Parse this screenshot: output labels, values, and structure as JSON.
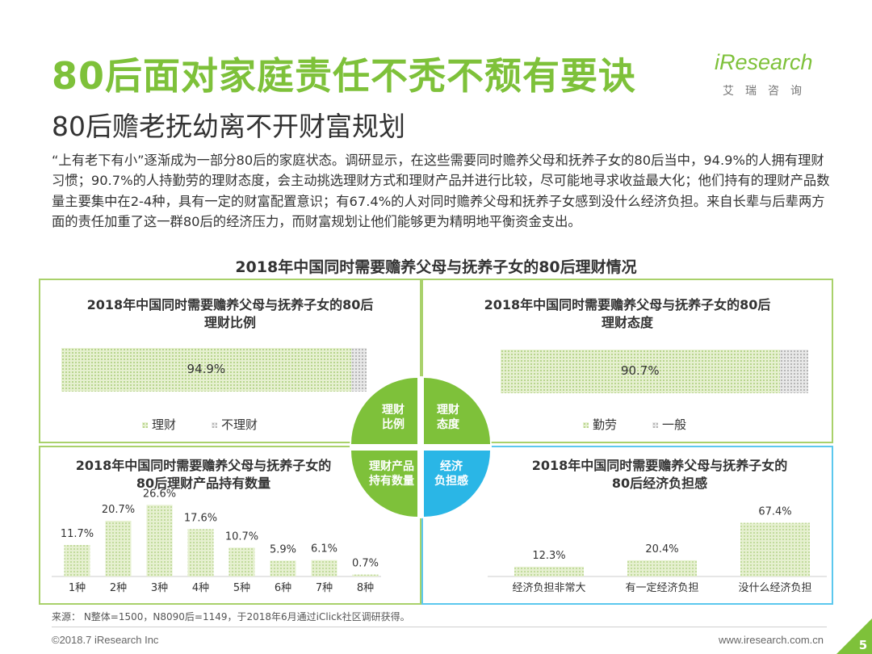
{
  "header": {
    "title": "80后面对家庭责任不秃不颓有要诀",
    "subtitle": "80后赡老抚幼离不开财富规划",
    "logo_en": "iResearch",
    "logo_cn": "艾瑞咨询"
  },
  "intro": {
    "text": "“上有老下有小”逐渐成为一部分80后的家庭状态。调研显示，在这些需要同时赡养父母和抚养子女的80后当中，94.9%的人拥有理财习惯；90.7%的人持勤劳的理财态度，会主动挑选理财方式和理财产品并进行比较，尽可能地寻求收益最大化；他们持有的理财产品数量主要集中在2-4种，具有一定的财富配置意识；有67.4%的人对同时赡养父母和抚养子女感到没什么经济负担。来自长辈与后辈两方面的责任加重了这一群80后的经济压力，而财富规划让他们能够更为精明地平衡资金支出。"
  },
  "section_title": "2018年中国同时需要赡养父母与抚养子女的80后理财情况",
  "center_labels": {
    "tl": [
      "理财",
      "比例"
    ],
    "tr": [
      "理财",
      "态度"
    ],
    "bl": [
      "理财产品",
      "持有数量"
    ],
    "br": [
      "经济",
      "负担感"
    ]
  },
  "colors": {
    "green": "#7ec13a",
    "blue": "#2ab6e6",
    "panel_border_green": "#a9d16b",
    "panel_border_blue": "#5cc8ee"
  },
  "chart_data": [
    {
      "type": "bar",
      "orientation": "horizontal-stacked",
      "title": "2018年中国同时需要赡养父母与抚养子女的80后理财比例",
      "title_lines": [
        "2018年中国同时需要赡养父母与抚养子女的80后",
        "理财比例"
      ],
      "series": [
        {
          "name": "理财",
          "value": 94.9,
          "label": "94.9%"
        },
        {
          "name": "不理财",
          "value": 5.1,
          "label": ""
        }
      ]
    },
    {
      "type": "bar",
      "orientation": "horizontal-stacked",
      "title": "2018年中国同时需要赡养父母与抚养子女的80后理财态度",
      "title_lines": [
        "2018年中国同时需要赡养父母与抚养子女的80后",
        "理财态度"
      ],
      "series": [
        {
          "name": "勤劳",
          "value": 90.7,
          "label": "90.7%"
        },
        {
          "name": "一般",
          "value": 9.3,
          "label": ""
        }
      ]
    },
    {
      "type": "bar",
      "title": "2018年中国同时需要赡养父母与抚养子女的80后理财产品持有数量",
      "title_lines": [
        "2018年中国同时需要赡养父母与抚养子女的",
        "80后理财产品持有数量"
      ],
      "categories": [
        "1种",
        "2种",
        "3种",
        "4种",
        "5种",
        "6种",
        "7种",
        "8种"
      ],
      "values": [
        11.7,
        20.7,
        26.6,
        17.6,
        10.7,
        5.9,
        6.1,
        0.7
      ],
      "labels": [
        "11.7%",
        "20.7%",
        "26.6%",
        "17.6%",
        "10.7%",
        "5.9%",
        "6.1%",
        "0.7%"
      ],
      "ylim": [
        0,
        30
      ]
    },
    {
      "type": "bar",
      "title": "2018年中国同时需要赡养父母与抚养子女的80后经济负担感",
      "title_lines": [
        "2018年中国同时需要赡养父母与抚养子女的",
        "80后经济负担感"
      ],
      "categories": [
        "经济负担非常大",
        "有一定经济负担",
        "没什么经济负担"
      ],
      "values": [
        12.3,
        20.4,
        67.4
      ],
      "labels": [
        "12.3%",
        "20.4%",
        "67.4%"
      ],
      "ylim": [
        0,
        70
      ]
    }
  ],
  "footer": {
    "source": "来源： N整体=1500，N8090后=1149，于2018年6月通过iClick社区调研获得。",
    "copyright": "©2018.7 iResearch Inc",
    "url": "www.iresearch.com.cn",
    "page_number": "5"
  }
}
